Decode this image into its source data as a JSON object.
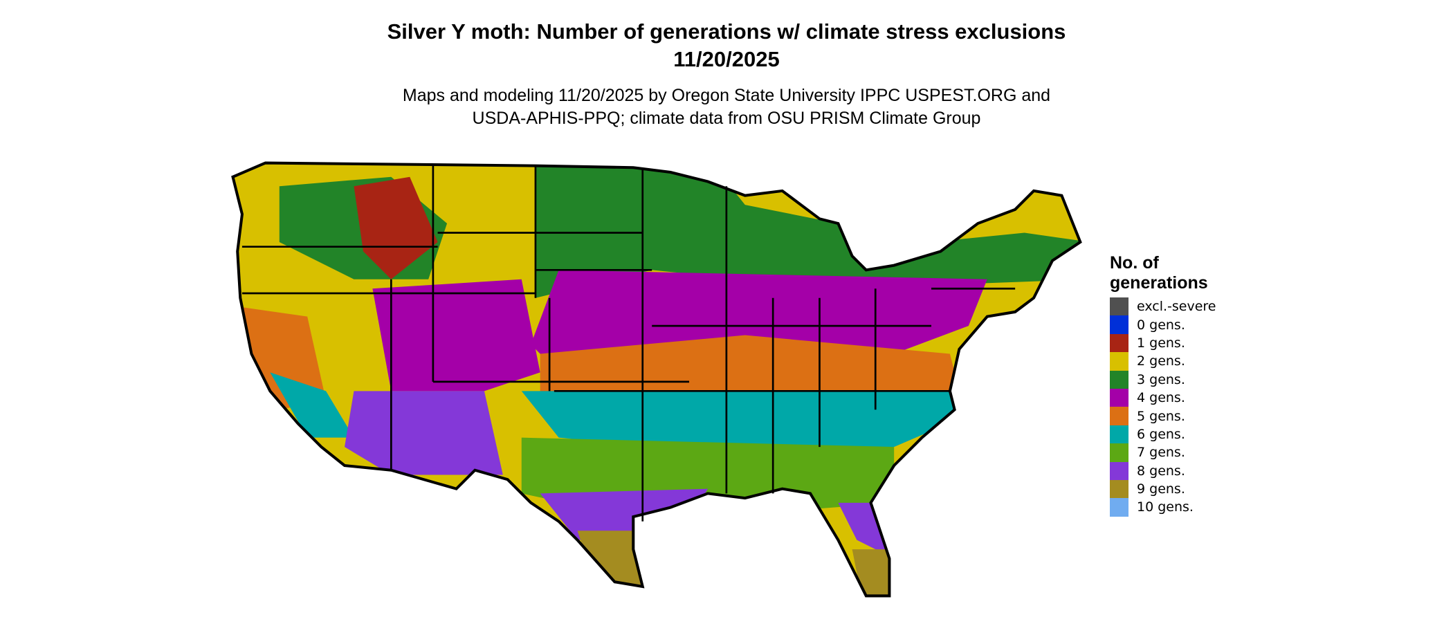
{
  "title": {
    "line1": "Silver Y moth: Number of generations w/ climate stress exclusions",
    "line2": "11/20/2025"
  },
  "subtitle": {
    "line1": "Maps and modeling 11/20/2025 by Oregon State University IPPC USPEST.ORG and",
    "line2": "USDA-APHIS-PPQ; climate data from OSU PRISM Climate Group"
  },
  "legend": {
    "title_line1": "No. of",
    "title_line2": "generations",
    "items": [
      {
        "label": "excl.-severe",
        "color": "#505050"
      },
      {
        "label": "0 gens.",
        "color": "#0030d8"
      },
      {
        "label": "1 gens.",
        "color": "#a82414"
      },
      {
        "label": "2 gens.",
        "color": "#d8c000"
      },
      {
        "label": "3 gens.",
        "color": "#228428"
      },
      {
        "label": "4 gens.",
        "color": "#a400a8"
      },
      {
        "label": "5 gens.",
        "color": "#dc7014"
      },
      {
        "label": "6 gens.",
        "color": "#00a8a8"
      },
      {
        "label": "7 gens.",
        "color": "#5ca814"
      },
      {
        "label": "8 gens.",
        "color": "#8438d8"
      },
      {
        "label": "9 gens.",
        "color": "#a48c20"
      },
      {
        "label": "10 gens.",
        "color": "#70acf0"
      }
    ]
  }
}
